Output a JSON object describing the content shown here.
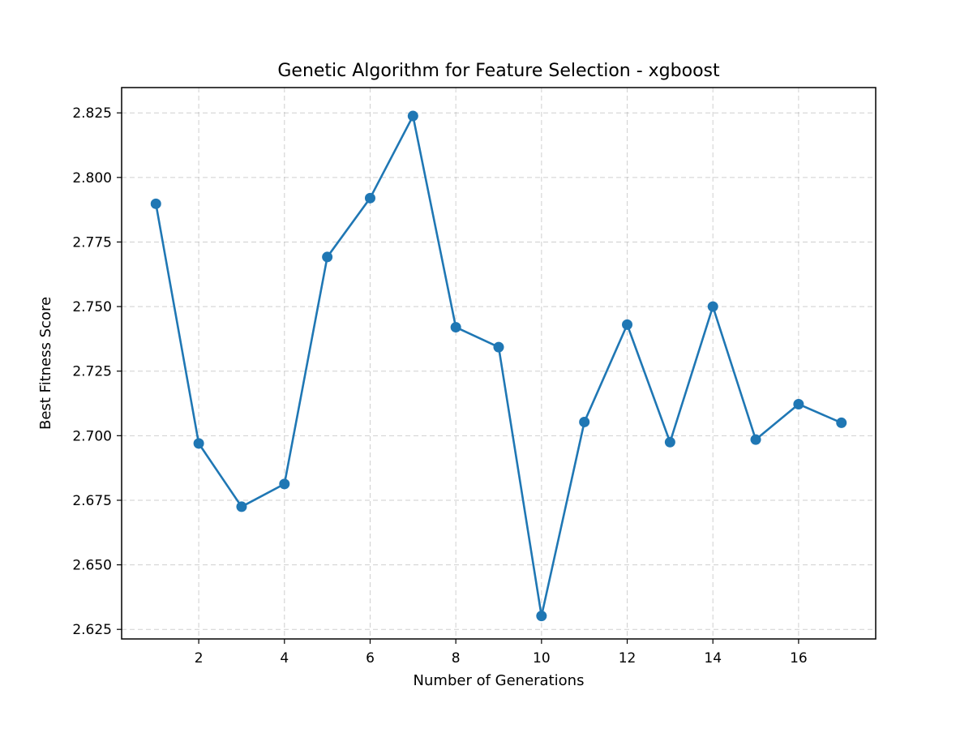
{
  "chart_data": {
    "type": "line",
    "title": "Genetic Algorithm for Feature Selection - xgboost",
    "xlabel": "Number of Generations",
    "ylabel": "Best Fitness Score",
    "xlim": [
      0.2,
      17.8
    ],
    "ylim": [
      2.6213,
      2.8348
    ],
    "xticks": [
      2,
      4,
      6,
      8,
      10,
      12,
      14,
      16
    ],
    "yticks": [
      2.625,
      2.65,
      2.675,
      2.7,
      2.725,
      2.75,
      2.775,
      2.8,
      2.825
    ],
    "ytick_labels": [
      "2.625",
      "2.650",
      "2.675",
      "2.700",
      "2.725",
      "2.750",
      "2.775",
      "2.800",
      "2.825"
    ],
    "grid": true,
    "legend": false,
    "color": "#1f77b4",
    "marker": "circle",
    "x": [
      1,
      2,
      3,
      4,
      5,
      6,
      7,
      8,
      9,
      10,
      11,
      12,
      13,
      14,
      15,
      16,
      17
    ],
    "series": [
      {
        "values": [
          2.7898,
          2.697,
          2.6725,
          2.6813,
          2.7692,
          2.792,
          2.8238,
          2.742,
          2.7343,
          2.6302,
          2.7053,
          2.743,
          2.6975,
          2.75,
          2.6985,
          2.7122,
          2.705
        ]
      }
    ]
  }
}
